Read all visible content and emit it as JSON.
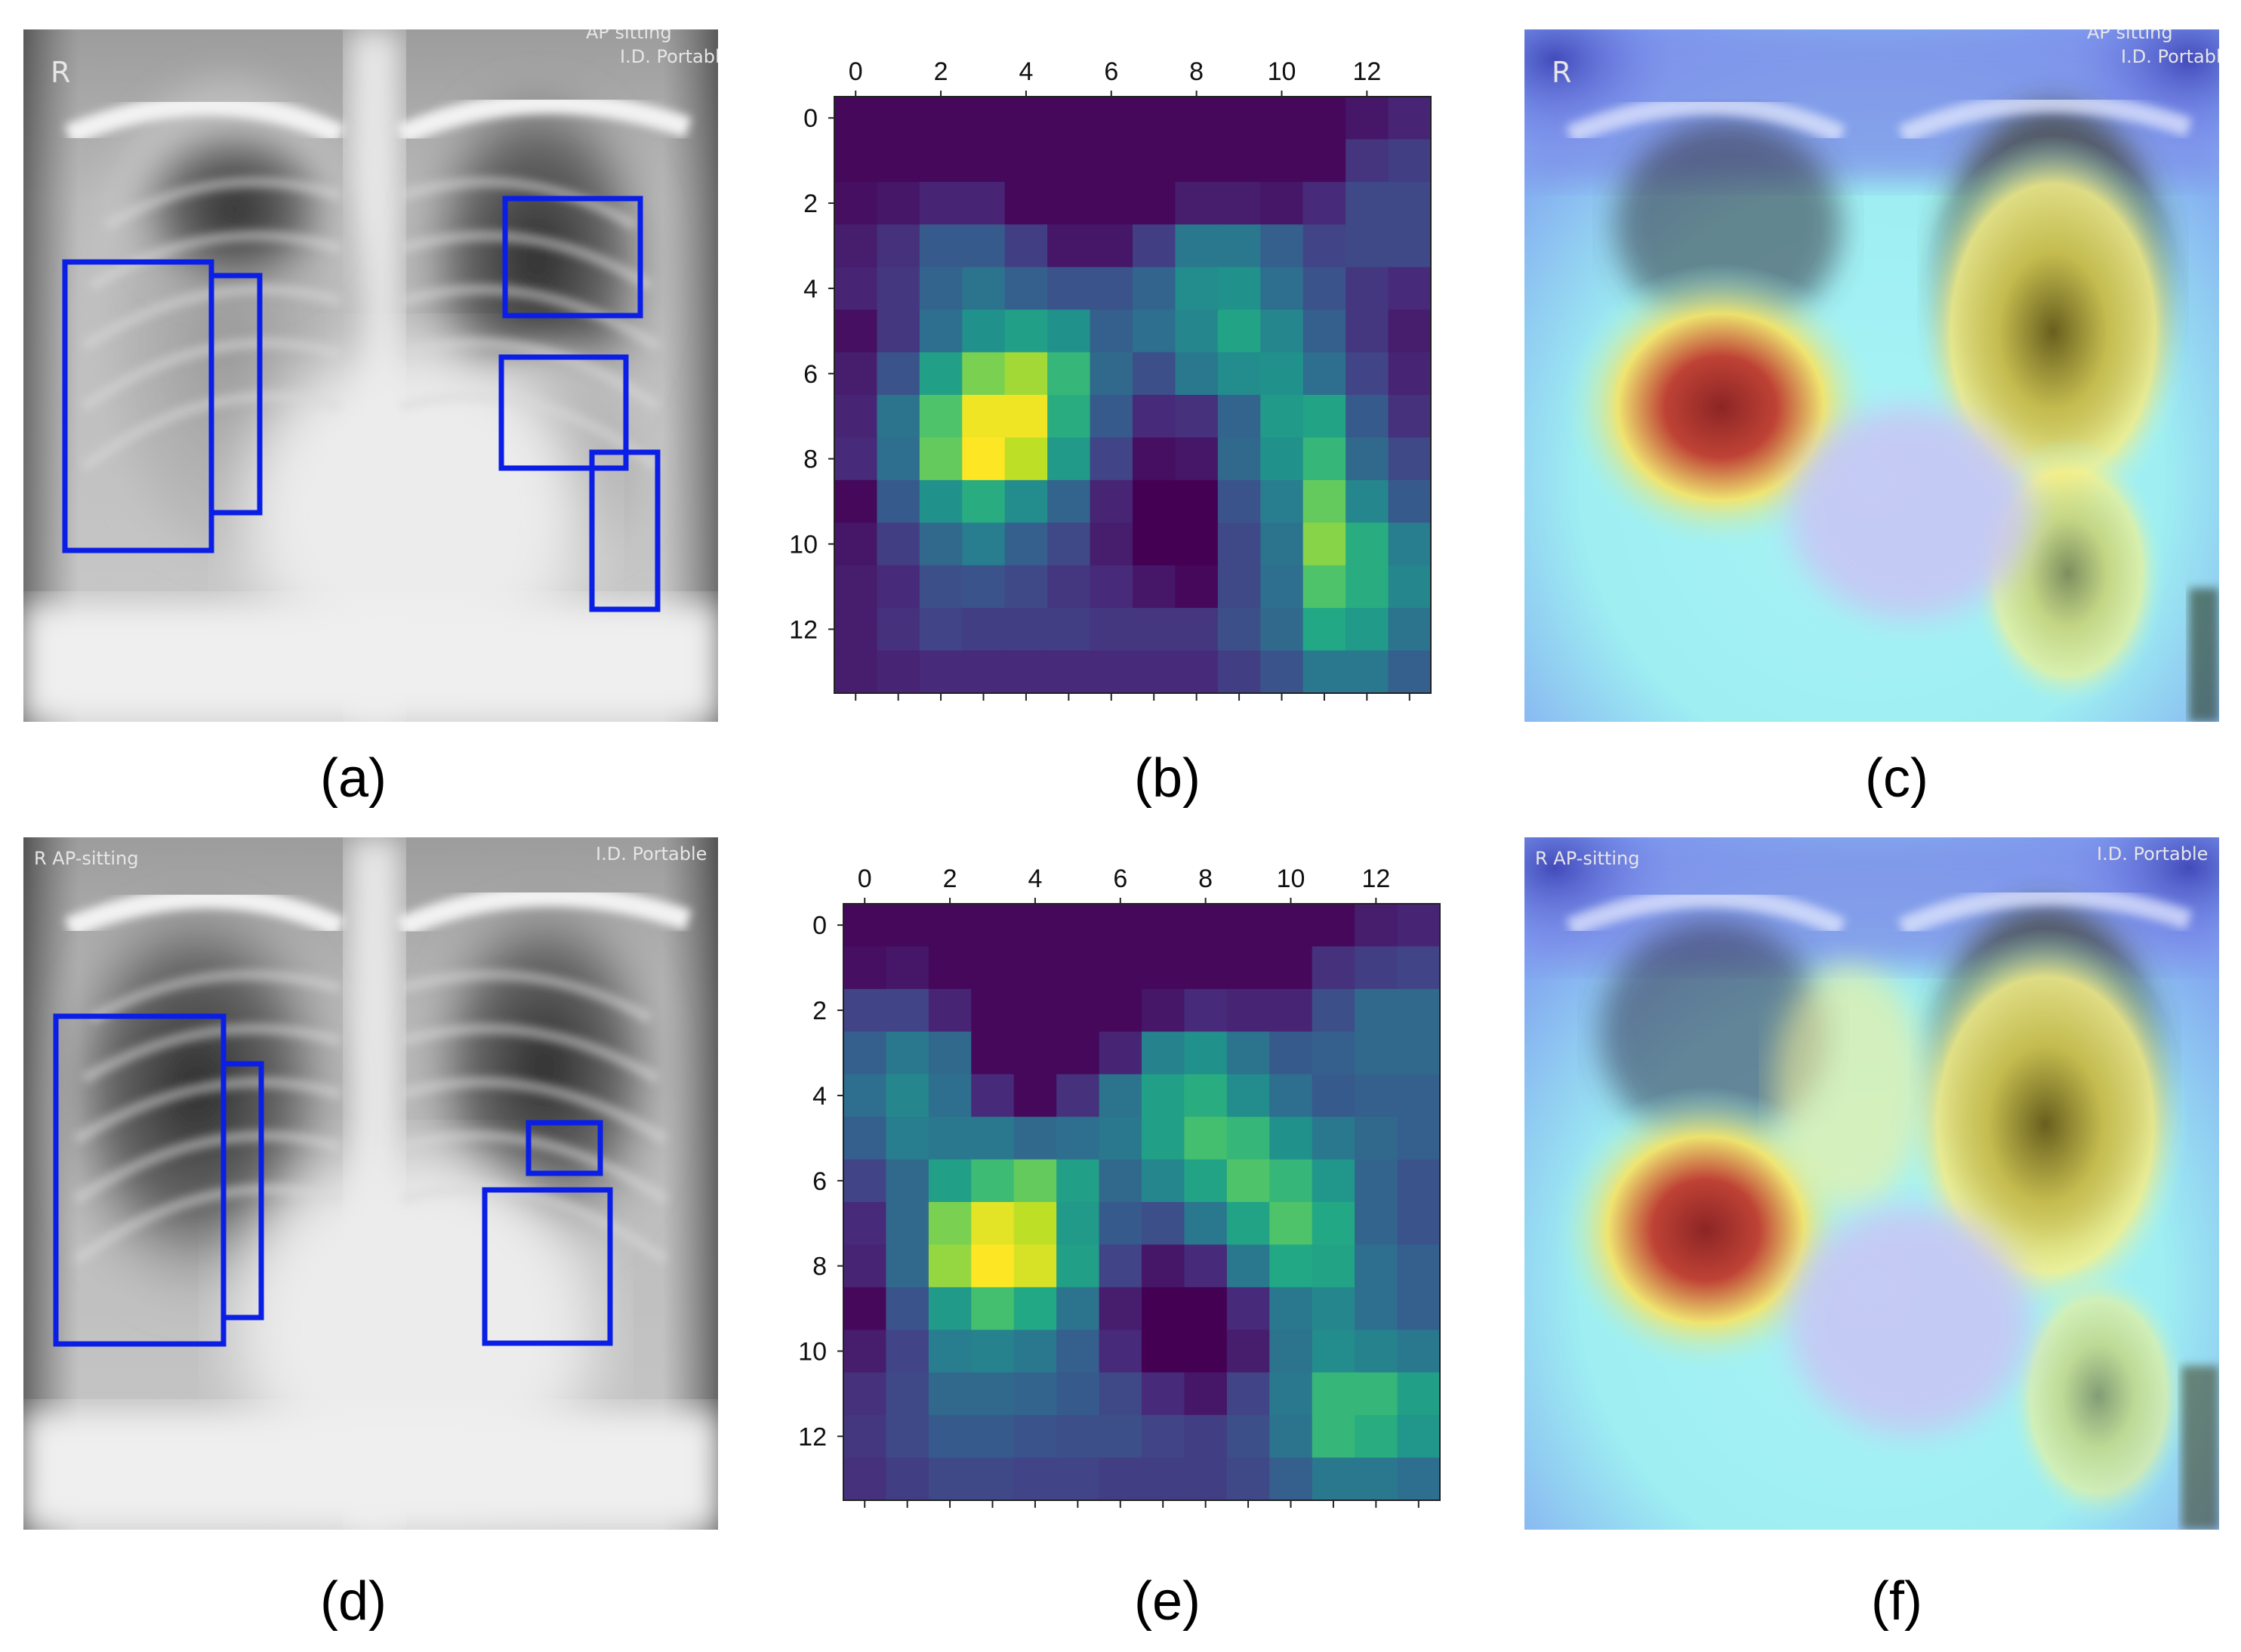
{
  "figure": {
    "captions": {
      "a": "(a)",
      "b": "(b)",
      "c": "(c)",
      "d": "(d)",
      "e": "(e)",
      "f": "(f)"
    },
    "xray_top": {
      "marker": "R",
      "label_left": "",
      "label_right_1": "AP sitting",
      "label_right_2": "I.D. Portable"
    },
    "xray_bottom": {
      "marker": "",
      "label_left": "R AP-sitting",
      "label_right_1": "I.D. Portable",
      "label_right_2": ""
    },
    "overlay_top": {
      "marker": "R",
      "label_left": "",
      "label_right_1": "AP sitting",
      "label_right_2": "I.D. Portable"
    },
    "overlay_bottom": {
      "marker": "",
      "label_left": "R AP-sitting",
      "label_right_1": "I.D. Portable",
      "label_right_2": ""
    },
    "bounding_box_color": "#0a1ee6"
  },
  "chart_data": [
    {
      "type": "heatmap",
      "colormap": "viridis",
      "x_ticks": [
        0,
        2,
        4,
        6,
        8,
        10,
        12
      ],
      "y_ticks": [
        0,
        2,
        4,
        6,
        8,
        10,
        12
      ],
      "shape": [
        14,
        14
      ],
      "xlim": [
        -0.5,
        13.5
      ],
      "ylim": [
        13.5,
        -0.5
      ],
      "grid": false,
      "values": [
        [
          0.02,
          0.02,
          0.02,
          0.02,
          0.02,
          0.02,
          0.02,
          0.02,
          0.02,
          0.02,
          0.02,
          0.02,
          0.06,
          0.1
        ],
        [
          0.02,
          0.02,
          0.02,
          0.02,
          0.02,
          0.02,
          0.02,
          0.02,
          0.02,
          0.02,
          0.02,
          0.02,
          0.15,
          0.18
        ],
        [
          0.04,
          0.06,
          0.1,
          0.1,
          0.02,
          0.02,
          0.02,
          0.02,
          0.08,
          0.08,
          0.06,
          0.12,
          0.22,
          0.22
        ],
        [
          0.08,
          0.14,
          0.28,
          0.28,
          0.18,
          0.06,
          0.06,
          0.18,
          0.4,
          0.4,
          0.3,
          0.2,
          0.22,
          0.22
        ],
        [
          0.1,
          0.16,
          0.32,
          0.38,
          0.3,
          0.26,
          0.26,
          0.32,
          0.48,
          0.5,
          0.36,
          0.26,
          0.16,
          0.12
        ],
        [
          0.04,
          0.16,
          0.36,
          0.5,
          0.56,
          0.5,
          0.3,
          0.36,
          0.46,
          0.58,
          0.46,
          0.3,
          0.16,
          0.08
        ],
        [
          0.08,
          0.26,
          0.56,
          0.8,
          0.86,
          0.66,
          0.34,
          0.24,
          0.4,
          0.48,
          0.5,
          0.36,
          0.2,
          0.1
        ],
        [
          0.1,
          0.38,
          0.72,
          0.98,
          0.98,
          0.62,
          0.28,
          0.12,
          0.14,
          0.32,
          0.54,
          0.58,
          0.28,
          0.14
        ],
        [
          0.12,
          0.36,
          0.76,
          1.0,
          0.9,
          0.54,
          0.2,
          0.04,
          0.06,
          0.34,
          0.5,
          0.66,
          0.34,
          0.22
        ],
        [
          0.02,
          0.28,
          0.5,
          0.62,
          0.48,
          0.32,
          0.1,
          0.0,
          0.0,
          0.26,
          0.42,
          0.76,
          0.46,
          0.28
        ],
        [
          0.06,
          0.18,
          0.34,
          0.42,
          0.3,
          0.22,
          0.08,
          0.0,
          0.0,
          0.22,
          0.38,
          0.82,
          0.62,
          0.42
        ],
        [
          0.08,
          0.12,
          0.24,
          0.26,
          0.22,
          0.16,
          0.12,
          0.06,
          0.02,
          0.22,
          0.36,
          0.72,
          0.62,
          0.46
        ],
        [
          0.08,
          0.14,
          0.2,
          0.18,
          0.18,
          0.18,
          0.16,
          0.16,
          0.16,
          0.24,
          0.34,
          0.6,
          0.54,
          0.38
        ],
        [
          0.08,
          0.1,
          0.12,
          0.12,
          0.12,
          0.12,
          0.12,
          0.12,
          0.12,
          0.18,
          0.26,
          0.4,
          0.4,
          0.3
        ]
      ]
    },
    {
      "type": "heatmap",
      "colormap": "viridis",
      "x_ticks": [
        0,
        2,
        4,
        6,
        8,
        10,
        12
      ],
      "y_ticks": [
        0,
        2,
        4,
        6,
        8,
        10,
        12
      ],
      "shape": [
        14,
        14
      ],
      "xlim": [
        -0.5,
        13.5
      ],
      "ylim": [
        13.5,
        -0.5
      ],
      "grid": false,
      "values": [
        [
          0.02,
          0.02,
          0.02,
          0.02,
          0.02,
          0.02,
          0.02,
          0.02,
          0.02,
          0.02,
          0.02,
          0.02,
          0.08,
          0.1
        ],
        [
          0.04,
          0.06,
          0.02,
          0.02,
          0.02,
          0.02,
          0.02,
          0.02,
          0.02,
          0.02,
          0.02,
          0.14,
          0.18,
          0.2
        ],
        [
          0.2,
          0.2,
          0.1,
          0.02,
          0.02,
          0.02,
          0.02,
          0.06,
          0.12,
          0.1,
          0.1,
          0.24,
          0.34,
          0.34
        ],
        [
          0.3,
          0.4,
          0.34,
          0.02,
          0.02,
          0.02,
          0.1,
          0.44,
          0.5,
          0.38,
          0.28,
          0.3,
          0.34,
          0.34
        ],
        [
          0.36,
          0.46,
          0.36,
          0.12,
          0.02,
          0.14,
          0.38,
          0.56,
          0.62,
          0.48,
          0.36,
          0.28,
          0.3,
          0.3
        ],
        [
          0.3,
          0.42,
          0.4,
          0.4,
          0.34,
          0.36,
          0.4,
          0.56,
          0.7,
          0.66,
          0.5,
          0.4,
          0.34,
          0.3
        ],
        [
          0.2,
          0.34,
          0.56,
          0.68,
          0.76,
          0.56,
          0.34,
          0.46,
          0.58,
          0.72,
          0.66,
          0.52,
          0.32,
          0.26
        ],
        [
          0.12,
          0.34,
          0.8,
          0.96,
          0.9,
          0.54,
          0.28,
          0.24,
          0.4,
          0.58,
          0.72,
          0.6,
          0.32,
          0.26
        ],
        [
          0.1,
          0.34,
          0.84,
          1.0,
          0.94,
          0.56,
          0.2,
          0.06,
          0.12,
          0.4,
          0.6,
          0.58,
          0.36,
          0.3
        ],
        [
          0.02,
          0.26,
          0.54,
          0.7,
          0.6,
          0.38,
          0.08,
          0.0,
          0.0,
          0.12,
          0.4,
          0.46,
          0.36,
          0.3
        ],
        [
          0.08,
          0.2,
          0.42,
          0.44,
          0.4,
          0.3,
          0.12,
          0.0,
          0.0,
          0.08,
          0.38,
          0.48,
          0.44,
          0.4
        ],
        [
          0.14,
          0.22,
          0.34,
          0.34,
          0.32,
          0.28,
          0.22,
          0.12,
          0.06,
          0.2,
          0.4,
          0.66,
          0.66,
          0.56
        ],
        [
          0.16,
          0.22,
          0.28,
          0.28,
          0.26,
          0.24,
          0.24,
          0.2,
          0.18,
          0.24,
          0.38,
          0.66,
          0.62,
          0.52
        ],
        [
          0.14,
          0.18,
          0.22,
          0.22,
          0.2,
          0.2,
          0.18,
          0.18,
          0.18,
          0.22,
          0.3,
          0.4,
          0.4,
          0.36
        ]
      ]
    }
  ]
}
